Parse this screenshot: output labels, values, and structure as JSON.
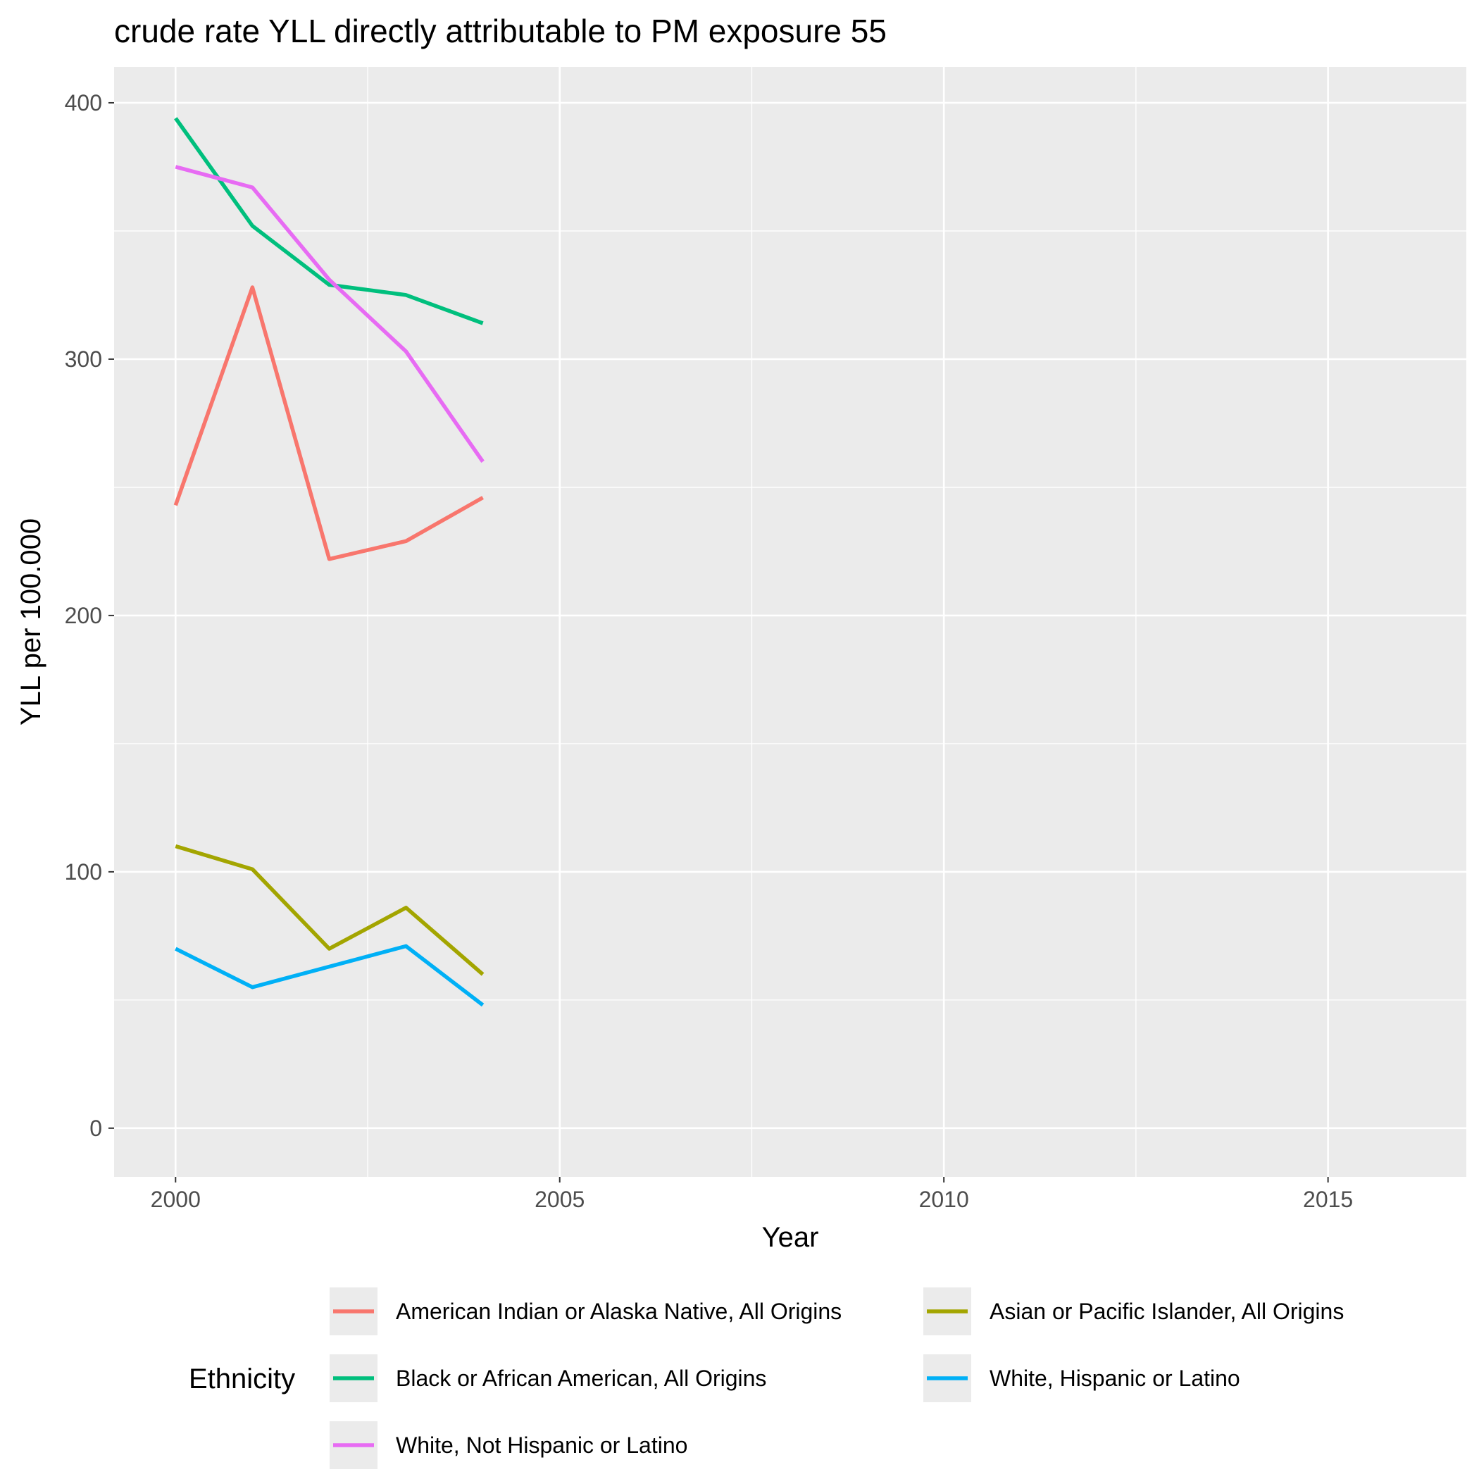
{
  "chart_data": {
    "type": "line",
    "title": "crude rate YLL directly attributable to PM exposure 55",
    "xlabel": "Year",
    "ylabel": "YLL per 100.000",
    "xlim": [
      1999.2,
      2016.8
    ],
    "ylim": [
      -19,
      414
    ],
    "x_ticks": [
      2000,
      2005,
      2010,
      2015
    ],
    "y_ticks": [
      0,
      100,
      200,
      300,
      400
    ],
    "grid": true,
    "legend": {
      "title": "Ethnicity",
      "position": "bottom"
    },
    "series": [
      {
        "name": "American Indian or Alaska Native, All Origins",
        "color": "#F8766D",
        "x": [
          2000,
          2001,
          2002,
          2003,
          2004
        ],
        "values": [
          243,
          328,
          222,
          229,
          246
        ]
      },
      {
        "name": "Asian or Pacific Islander, All Origins",
        "color": "#A3A500",
        "x": [
          2000,
          2001,
          2002,
          2003,
          2004
        ],
        "values": [
          110,
          101,
          70,
          86,
          60
        ]
      },
      {
        "name": "Black or African American, All Origins",
        "color": "#00BF7D",
        "x": [
          2000,
          2001,
          2002,
          2003,
          2004
        ],
        "values": [
          394,
          352,
          329,
          325,
          314
        ]
      },
      {
        "name": "White, Hispanic or Latino",
        "color": "#00B0F6",
        "x": [
          2000,
          2001,
          2002,
          2003,
          2004
        ],
        "values": [
          70,
          55,
          63,
          71,
          48
        ]
      },
      {
        "name": "White, Not Hispanic or Latino",
        "color": "#E76BF3",
        "x": [
          2000,
          2001,
          2002,
          2003,
          2004
        ],
        "values": [
          375,
          367,
          331,
          303,
          260
        ]
      }
    ]
  }
}
